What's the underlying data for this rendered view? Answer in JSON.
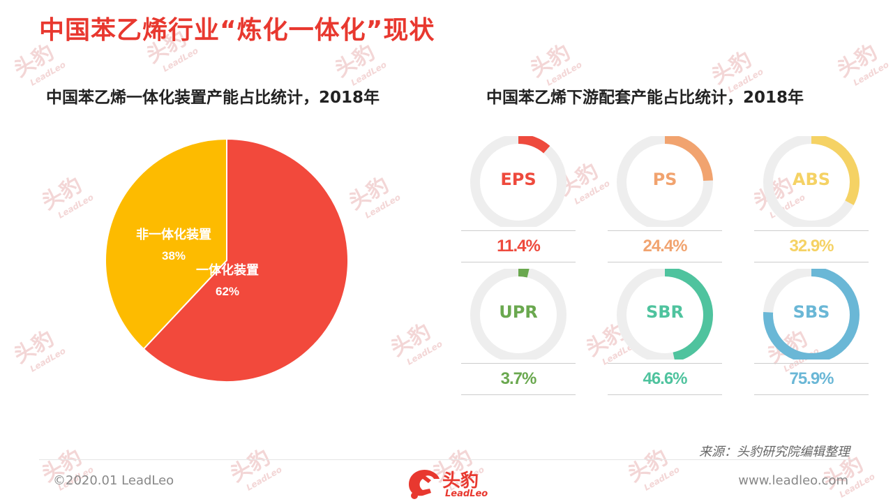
{
  "page": {
    "title": "中国苯乙烯行业“炼化一体化”现状",
    "source": "来源：头豹研究院编辑整理",
    "copyright": "©2020.01 LeadLeo",
    "website": "www.leadleo.com",
    "logo_cn": "头豹",
    "logo_en": "LeadLeo",
    "watermark_cn": "头豹",
    "watermark_en": "LeadLeo"
  },
  "colors": {
    "title": "#e8382f",
    "donut_track": "#eeeeee",
    "logo": "#e8382f"
  },
  "chart_data": [
    {
      "type": "pie",
      "title": "中国苯乙烯一体化装置产能占比统计，2018年",
      "slices": [
        {
          "name": "一体化装置",
          "value": 62,
          "label": "62%",
          "color": "#f2493c"
        },
        {
          "name": "非一体化装置",
          "value": 38,
          "label": "38%",
          "color": "#fdbb00"
        }
      ]
    },
    {
      "type": "donut",
      "title": "中国苯乙烯下游配套产能占比统计，2018年",
      "items": [
        {
          "name": "EPS",
          "value": 11.4,
          "label": "11.4%",
          "color": "#ee4a3d"
        },
        {
          "name": "PS",
          "value": 24.4,
          "label": "24.4%",
          "color": "#f1a36f"
        },
        {
          "name": "ABS",
          "value": 32.9,
          "label": "32.9%",
          "color": "#f5d264"
        },
        {
          "name": "UPR",
          "value": 3.7,
          "label": "3.7%",
          "color": "#6aa84f"
        },
        {
          "name": "SBR",
          "value": 46.6,
          "label": "46.6%",
          "color": "#4fc39e"
        },
        {
          "name": "SBS",
          "value": 75.9,
          "label": "75.9%",
          "color": "#6ab7d6"
        }
      ]
    }
  ]
}
